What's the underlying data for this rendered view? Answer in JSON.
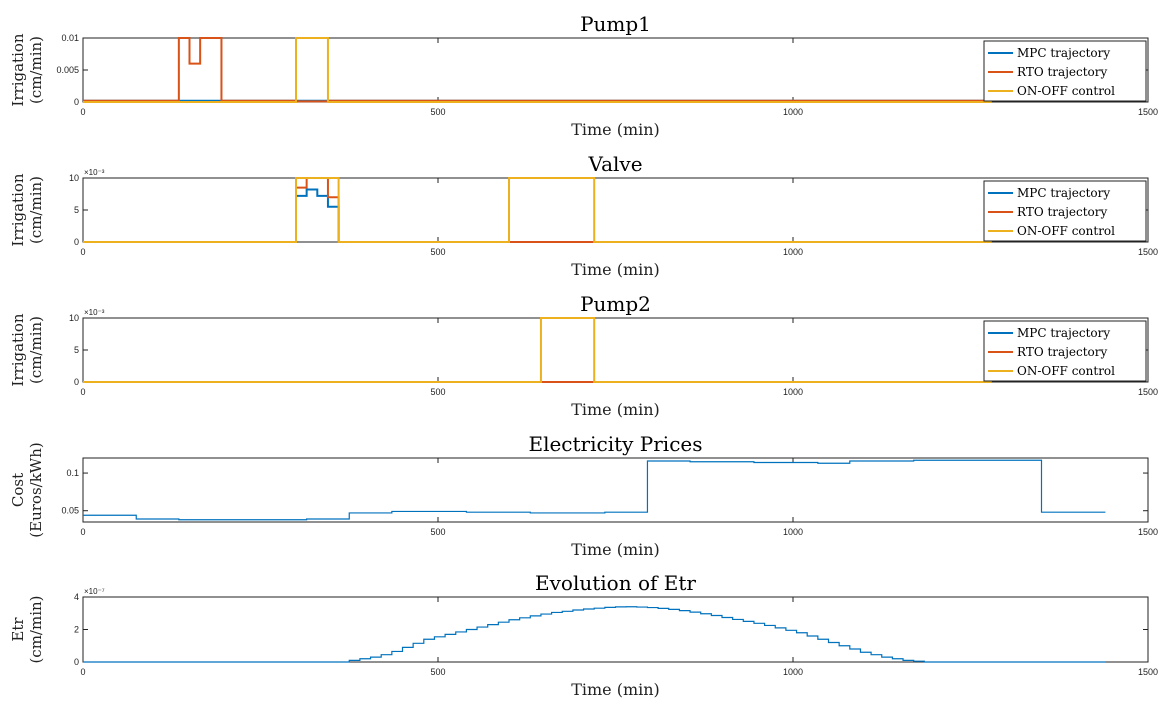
{
  "chart_data": [
    {
      "type": "line",
      "title": "Pump1",
      "xlabel": "Time (min)",
      "ylabel": [
        "Irrigation",
        "(cm/min)"
      ],
      "xlim": [
        0,
        1500
      ],
      "xticks": [
        "0",
        "500",
        "1000",
        "1500"
      ],
      "ylim": [
        0,
        0.01
      ],
      "yticks": [
        {
          "v": 0,
          "label": "0"
        },
        {
          "v": 0.005,
          "label": "0.005"
        },
        {
          "v": 0.01,
          "label": "0.01"
        }
      ],
      "exponent": "",
      "legend": "top-right",
      "series": [
        {
          "name": "MPC trajectory",
          "color": "#0072BD",
          "x": [
            0,
            135,
            135,
            1280
          ],
          "y": [
            0.0002,
            0.0002,
            0.0002,
            0.0002
          ]
        },
        {
          "name": "RTO trajectory",
          "color": "#D95319",
          "x": [
            0,
            135,
            135,
            150,
            150,
            165,
            165,
            195,
            195,
            300,
            300,
            345,
            345,
            1280
          ],
          "y": [
            0.0002,
            0.0002,
            0.01,
            0.01,
            0.006,
            0.006,
            0.01,
            0.01,
            0.0002,
            0.0002,
            0.0001,
            0.0001,
            0.0002,
            0.0002
          ]
        },
        {
          "name": "ON-OFF control",
          "color": "#EDB120",
          "x": [
            0,
            300,
            300,
            345,
            345,
            1280
          ],
          "y": [
            0,
            0,
            0.01,
            0.01,
            0,
            0
          ]
        }
      ]
    },
    {
      "type": "line",
      "title": "Valve",
      "xlabel": "Time (min)",
      "ylabel": [
        "Irrigation",
        "(cm/min)"
      ],
      "xlim": [
        0,
        1500
      ],
      "xticks": [
        "0",
        "500",
        "1000",
        "1500"
      ],
      "ylim": [
        0,
        10
      ],
      "yticks": [
        {
          "v": 0,
          "label": "0"
        },
        {
          "v": 5,
          "label": "5"
        },
        {
          "v": 10,
          "label": "10"
        }
      ],
      "exponent": "×10⁻³",
      "legend": "top-right",
      "series": [
        {
          "name": "MPC trajectory",
          "color": "#0072BD",
          "x": [
            0,
            300,
            300,
            315,
            315,
            330,
            330,
            345,
            345,
            360,
            360,
            1280
          ],
          "y": [
            0,
            0,
            7.2,
            7.2,
            8.2,
            8.2,
            7.2,
            7.2,
            5.5,
            5.5,
            0,
            0
          ]
        },
        {
          "name": "RTO trajectory",
          "color": "#D95319",
          "x": [
            0,
            300,
            300,
            315,
            315,
            345,
            345,
            360,
            360,
            1280
          ],
          "y": [
            0,
            0,
            8.5,
            8.5,
            10,
            10,
            7,
            7,
            0,
            0
          ]
        },
        {
          "name": "ON-OFF control",
          "color": "#EDB120",
          "x": [
            0,
            300,
            300,
            360,
            360,
            600,
            600,
            720,
            720,
            1280
          ],
          "y": [
            0,
            0,
            10,
            10,
            0,
            0,
            10,
            10,
            0,
            0
          ]
        }
      ]
    },
    {
      "type": "line",
      "title": "Pump2",
      "xlabel": "Time (min)",
      "ylabel": [
        "Irrigation",
        "(cm/min)"
      ],
      "xlim": [
        0,
        1500
      ],
      "xticks": [
        "0",
        "500",
        "1000",
        "1500"
      ],
      "ylim": [
        0,
        10
      ],
      "yticks": [
        {
          "v": 0,
          "label": "0"
        },
        {
          "v": 5,
          "label": "5"
        },
        {
          "v": 10,
          "label": "10"
        }
      ],
      "exponent": "×10⁻³",
      "legend": "top-right",
      "series": [
        {
          "name": "MPC trajectory",
          "color": "#0072BD",
          "x": [
            0,
            1280
          ],
          "y": [
            0,
            0
          ]
        },
        {
          "name": "RTO trajectory",
          "color": "#D95319",
          "x": [
            0,
            1280
          ],
          "y": [
            0,
            0
          ]
        },
        {
          "name": "ON-OFF control",
          "color": "#EDB120",
          "x": [
            0,
            645,
            645,
            720,
            720,
            1280
          ],
          "y": [
            0,
            0,
            10,
            10,
            0,
            0
          ]
        }
      ]
    },
    {
      "type": "line",
      "title": "Electricity Prices",
      "xlabel": "Time (min)",
      "ylabel": [
        "Cost",
        "(Euros/kWh)"
      ],
      "xlim": [
        0,
        1500
      ],
      "xticks": [
        "0",
        "500",
        "1000",
        "1500"
      ],
      "ylim": [
        0.035,
        0.12
      ],
      "yticks": [
        {
          "v": 0.05,
          "label": "0.05"
        },
        {
          "v": 0.1,
          "label": "0.1"
        }
      ],
      "exponent": "",
      "legend": "none",
      "series": [
        {
          "name": "",
          "color": "#0072BD",
          "x": [
            0,
            75,
            75,
            135,
            135,
            180,
            180,
            225,
            225,
            270,
            270,
            315,
            315,
            375,
            375,
            435,
            435,
            480,
            480,
            540,
            540,
            585,
            585,
            630,
            630,
            690,
            690,
            735,
            735,
            795,
            795,
            855,
            855,
            900,
            900,
            945,
            945,
            990,
            990,
            1035,
            1035,
            1080,
            1080,
            1125,
            1125,
            1170,
            1170,
            1215,
            1215,
            1260,
            1260,
            1305,
            1305,
            1350,
            1350,
            1395,
            1395,
            1440
          ],
          "y": [
            0.044,
            0.044,
            0.039,
            0.039,
            0.038,
            0.038,
            0.038,
            0.038,
            0.038,
            0.038,
            0.038,
            0.038,
            0.039,
            0.039,
            0.047,
            0.047,
            0.049,
            0.049,
            0.049,
            0.049,
            0.048,
            0.048,
            0.048,
            0.048,
            0.047,
            0.047,
            0.047,
            0.047,
            0.048,
            0.048,
            0.116,
            0.116,
            0.115,
            0.115,
            0.115,
            0.115,
            0.114,
            0.114,
            0.114,
            0.114,
            0.113,
            0.113,
            0.116,
            0.116,
            0.116,
            0.116,
            0.117,
            0.117,
            0.117,
            0.117,
            0.117,
            0.117,
            0.117,
            0.117,
            0.048,
            0.048,
            0.048,
            0.048
          ]
        }
      ]
    },
    {
      "type": "line",
      "title": "Evolution of Etr",
      "xlabel": "Time (min)",
      "ylabel": [
        "Etr",
        "(cm/min)"
      ],
      "xlim": [
        0,
        1500
      ],
      "xticks": [
        "0",
        "500",
        "1000",
        "1500"
      ],
      "ylim": [
        0,
        4
      ],
      "yticks": [
        {
          "v": 0,
          "label": "0"
        },
        {
          "v": 2,
          "label": "2"
        },
        {
          "v": 4,
          "label": "4"
        }
      ],
      "exponent": "×10⁻⁷",
      "legend": "none",
      "series": [
        {
          "name": "",
          "color": "#0072BD",
          "stepsize": 15,
          "x": [
            0,
            375,
            390,
            405,
            420,
            435,
            450,
            465,
            480,
            495,
            510,
            525,
            540,
            555,
            570,
            585,
            600,
            615,
            630,
            645,
            660,
            675,
            690,
            705,
            720,
            735,
            750,
            765,
            780,
            795,
            810,
            825,
            840,
            855,
            870,
            885,
            900,
            915,
            930,
            945,
            960,
            975,
            990,
            1005,
            1020,
            1035,
            1050,
            1065,
            1080,
            1095,
            1110,
            1125,
            1140,
            1155,
            1170,
            1185,
            1200,
            1440
          ],
          "y": [
            0,
            0.1,
            0.2,
            0.3,
            0.45,
            0.65,
            0.9,
            1.15,
            1.4,
            1.55,
            1.7,
            1.85,
            2.0,
            2.15,
            2.3,
            2.45,
            2.6,
            2.72,
            2.84,
            2.95,
            3.05,
            3.12,
            3.2,
            3.26,
            3.31,
            3.36,
            3.39,
            3.4,
            3.38,
            3.35,
            3.3,
            3.24,
            3.16,
            3.07,
            2.97,
            2.86,
            2.74,
            2.62,
            2.5,
            2.38,
            2.25,
            2.1,
            1.95,
            1.8,
            1.6,
            1.4,
            1.2,
            1.0,
            0.8,
            0.6,
            0.45,
            0.3,
            0.2,
            0.1,
            0.05,
            0,
            0,
            0
          ]
        }
      ]
    }
  ]
}
